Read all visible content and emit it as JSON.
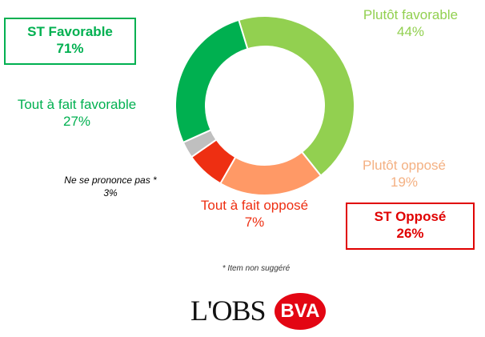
{
  "chart_data": {
    "type": "pie",
    "donut": true,
    "slices": [
      {
        "label": "Plutôt favorable",
        "value": 44,
        "color": "#92D050"
      },
      {
        "label": "Plutôt opposé",
        "value": 19,
        "color": "#FF9966"
      },
      {
        "label": "Tout à fait opposé",
        "value": 7,
        "color": "#EE2F12"
      },
      {
        "label": "Ne se prononce pas *",
        "value": 3,
        "color": "#BFBFBF"
      },
      {
        "label": "Tout à fait favorable",
        "value": 27,
        "color": "#00B050"
      }
    ],
    "value_labels": {
      "plutot_favorable": "44%",
      "plutot_oppose": "19%",
      "tout_a_fait_oppose": "7%",
      "nsp": "3%",
      "tout_a_fait_favorable": "27%"
    },
    "summaries": {
      "favorable": {
        "label": "ST Favorable",
        "value": "71%",
        "color": "#00B050"
      },
      "oppose": {
        "label": "ST Opposé",
        "value": "26%",
        "color": "#E00000"
      }
    },
    "label_colors": {
      "plutot_favorable": "#92D050",
      "plutot_oppose": "#F4B183",
      "tout_a_fait_oppose": "#EE2F12",
      "nsp": "#000000",
      "tout_a_fait_favorable": "#00B050"
    }
  },
  "footnote": "* Item non suggéré",
  "logos": {
    "lobs": "L'OBS",
    "bva": "BVA"
  }
}
